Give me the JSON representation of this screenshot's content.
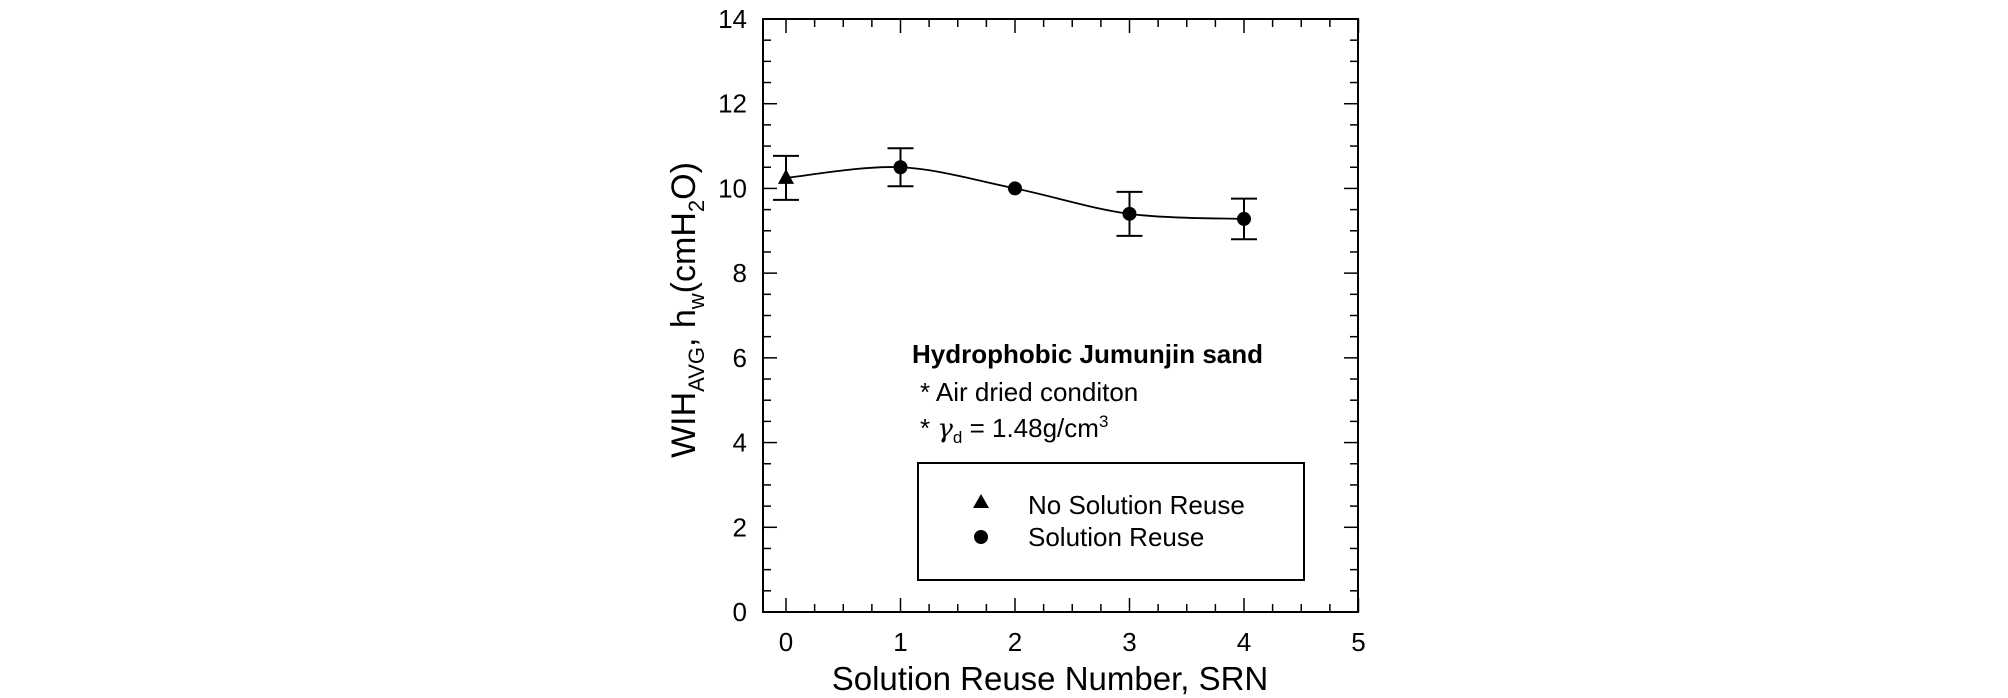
{
  "chart_data": {
    "type": "scatter",
    "title": "",
    "xlabel": "Solution Reuse Number, SRN",
    "ylabel": {
      "main": "WIH",
      "sub_avg": "AVG",
      "comma": ", h",
      "sub_w": "w",
      "unit_a": "(cmH",
      "sub_2": "2",
      "unit_b": "O)"
    },
    "xlim": [
      0,
      5
    ],
    "ylim": [
      0,
      14
    ],
    "x_ticks": [
      "0",
      "1",
      "2",
      "3",
      "4",
      "5"
    ],
    "y_ticks": [
      "0",
      "2",
      "4",
      "6",
      "8",
      "10",
      "12",
      "14"
    ],
    "grid": false,
    "annotation": {
      "title": "Hydrophobic Jumunjin sand",
      "title_color": "#1a1aff",
      "line1": "* Air dried conditon",
      "line2_prefix": "* ",
      "gamma": "γ",
      "gamma_sub": "d",
      "line2_value": " = 1.48g/cm",
      "line2_sup": "3"
    },
    "legend_position": "lower-right",
    "series": [
      {
        "name": "No Solution Reuse",
        "marker": "triangle",
        "points": [
          {
            "x": 0,
            "y": 10.25,
            "err": 0.52
          }
        ]
      },
      {
        "name": "Solution Reuse",
        "marker": "circle",
        "points": [
          {
            "x": 1,
            "y": 10.5,
            "err": 0.45
          },
          {
            "x": 2,
            "y": 10.0,
            "err": 0
          },
          {
            "x": 3,
            "y": 9.4,
            "err": 0.52
          },
          {
            "x": 4,
            "y": 9.28,
            "err": 0.48
          }
        ]
      }
    ],
    "fit_curve": [
      [
        0,
        10.25
      ],
      [
        1,
        10.5
      ],
      [
        2,
        10.0
      ],
      [
        3,
        9.4
      ],
      [
        4,
        9.28
      ]
    ]
  }
}
